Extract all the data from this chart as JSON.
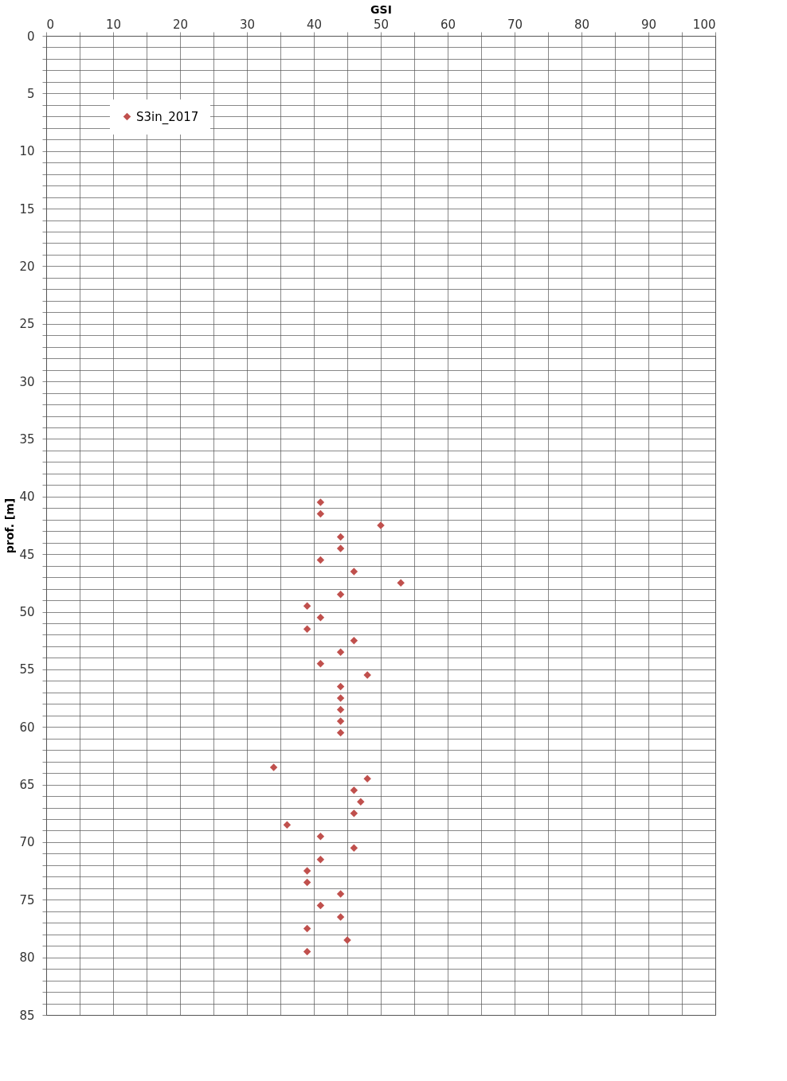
{
  "chart_data": {
    "type": "scatter",
    "xlabel": "GSI",
    "ylabel": "prof. [m]",
    "xlim": [
      0,
      100
    ],
    "ylim": [
      85,
      0
    ],
    "xticks": [
      0,
      {
        "value": 5,
        "label": null
      },
      10,
      {
        "value": 15,
        "label": null
      },
      20,
      {
        "value": 25,
        "label": null
      },
      30,
      {
        "value": 35,
        "label": null
      },
      40,
      {
        "value": 45,
        "label": null
      },
      50,
      {
        "value": 55,
        "label": null
      },
      60,
      {
        "value": 65,
        "label": null
      },
      70,
      {
        "value": 75,
        "label": null
      },
      80,
      {
        "value": 85,
        "label": null
      },
      90,
      {
        "value": 95,
        "label": null
      },
      100
    ],
    "yticks": [
      0,
      {
        "value": 1,
        "label": null
      },
      {
        "value": 2,
        "label": null
      },
      {
        "value": 3,
        "label": null
      },
      {
        "value": 4,
        "label": null
      },
      5,
      {
        "value": 6,
        "label": null
      },
      {
        "value": 7,
        "label": null
      },
      {
        "value": 8,
        "label": null
      },
      {
        "value": 9,
        "label": null
      },
      10,
      {
        "value": 11,
        "label": null
      },
      {
        "value": 12,
        "label": null
      },
      {
        "value": 13,
        "label": null
      },
      {
        "value": 14,
        "label": null
      },
      15,
      {
        "value": 16,
        "label": null
      },
      {
        "value": 17,
        "label": null
      },
      {
        "value": 18,
        "label": null
      },
      {
        "value": 19,
        "label": null
      },
      20,
      {
        "value": 21,
        "label": null
      },
      {
        "value": 22,
        "label": null
      },
      {
        "value": 23,
        "label": null
      },
      {
        "value": 24,
        "label": null
      },
      25,
      {
        "value": 26,
        "label": null
      },
      {
        "value": 27,
        "label": null
      },
      {
        "value": 28,
        "label": null
      },
      {
        "value": 29,
        "label": null
      },
      30,
      {
        "value": 31,
        "label": null
      },
      {
        "value": 32,
        "label": null
      },
      {
        "value": 33,
        "label": null
      },
      {
        "value": 34,
        "label": null
      },
      35,
      {
        "value": 36,
        "label": null
      },
      {
        "value": 37,
        "label": null
      },
      {
        "value": 38,
        "label": null
      },
      {
        "value": 39,
        "label": null
      },
      40,
      {
        "value": 41,
        "label": null
      },
      {
        "value": 42,
        "label": null
      },
      {
        "value": 43,
        "label": null
      },
      {
        "value": 44,
        "label": null
      },
      45,
      {
        "value": 46,
        "label": null
      },
      {
        "value": 47,
        "label": null
      },
      {
        "value": 48,
        "label": null
      },
      {
        "value": 49,
        "label": null
      },
      50,
      {
        "value": 51,
        "label": null
      },
      {
        "value": 52,
        "label": null
      },
      {
        "value": 53,
        "label": null
      },
      {
        "value": 54,
        "label": null
      },
      55,
      {
        "value": 56,
        "label": null
      },
      {
        "value": 57,
        "label": null
      },
      {
        "value": 58,
        "label": null
      },
      {
        "value": 59,
        "label": null
      },
      60,
      {
        "value": 61,
        "label": null
      },
      {
        "value": 62,
        "label": null
      },
      {
        "value": 63,
        "label": null
      },
      {
        "value": 64,
        "label": null
      },
      65,
      {
        "value": 66,
        "label": null
      },
      {
        "value": 67,
        "label": null
      },
      {
        "value": 68,
        "label": null
      },
      {
        "value": 69,
        "label": null
      },
      70,
      {
        "value": 71,
        "label": null
      },
      {
        "value": 72,
        "label": null
      },
      {
        "value": 73,
        "label": null
      },
      {
        "value": 74,
        "label": null
      },
      75,
      {
        "value": 76,
        "label": null
      },
      {
        "value": 77,
        "label": null
      },
      {
        "value": 78,
        "label": null
      },
      {
        "value": 79,
        "label": null
      },
      80,
      {
        "value": 81,
        "label": null
      },
      {
        "value": 82,
        "label": null
      },
      {
        "value": 83,
        "label": null
      },
      {
        "value": 84,
        "label": null
      },
      85
    ],
    "grid": true,
    "legend": "top left",
    "marker": "diamond",
    "series": [
      {
        "name": "S3in_2017",
        "color": "#c0504d",
        "x": [
          41,
          41,
          50,
          44,
          44,
          41,
          46,
          53,
          44,
          39,
          41,
          39,
          46,
          44,
          41,
          48,
          44,
          44,
          44,
          44,
          44,
          34,
          48,
          46,
          47,
          46,
          36,
          41,
          46,
          41,
          39,
          39,
          44,
          41,
          44,
          39,
          45,
          39
        ],
        "values": [
          40.5,
          41.5,
          42.5,
          43.5,
          44.5,
          45.5,
          46.5,
          47.5,
          48.5,
          49.5,
          50.5,
          51.5,
          52.5,
          53.5,
          54.5,
          55.5,
          56.5,
          57.5,
          58.5,
          59.5,
          60.5,
          63.5,
          64.5,
          65.5,
          66.5,
          67.5,
          68.5,
          69.5,
          70.5,
          71.5,
          72.5,
          73.5,
          74.5,
          75.5,
          76.5,
          77.5,
          78.5,
          79.5
        ]
      }
    ]
  }
}
